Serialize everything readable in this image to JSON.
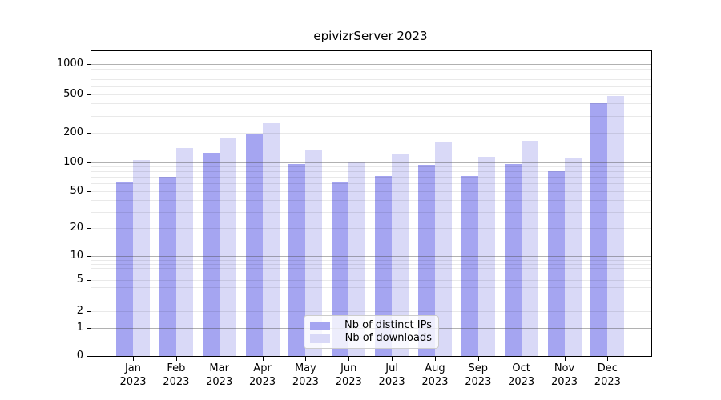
{
  "chart_data": {
    "type": "bar",
    "title": "epivizrServer 2023",
    "categories": [
      "Jan",
      "Feb",
      "Mar",
      "Apr",
      "May",
      "Jun",
      "Jul",
      "Aug",
      "Sep",
      "Oct",
      "Nov",
      "Dec"
    ],
    "category_year": "2023",
    "series": [
      {
        "name": "Nb of distinct IPs",
        "color": "#a5a5f1",
        "values": [
          62,
          70,
          125,
          195,
          95,
          62,
          71,
          94,
          72,
          96,
          81,
          405
        ]
      },
      {
        "name": "Nb of downloads",
        "color": "#d9d9f7",
        "values": [
          105,
          140,
          175,
          250,
          135,
          102,
          121,
          160,
          113,
          165,
          110,
          475
        ]
      }
    ],
    "xlabel": "",
    "ylabel": "",
    "yscale": "log-like with zero baseline",
    "yticks": [
      0,
      1,
      2,
      5,
      10,
      20,
      50,
      100,
      200,
      500,
      1000
    ],
    "major_grid_values": [
      1,
      10,
      100,
      1000
    ],
    "minor_grid_values": [
      2,
      3,
      4,
      5,
      6,
      7,
      8,
      9,
      20,
      30,
      40,
      50,
      60,
      70,
      80,
      90,
      200,
      300,
      400,
      500,
      600,
      700,
      800,
      900
    ],
    "ylim": [
      0,
      1400
    ],
    "grid": "horizontal, drawn over bars",
    "legend_position": "lower center inside plot"
  },
  "colors": {
    "distinct_ips_bar": "#a5a5f1",
    "downloads_bar": "#d9d9f7",
    "plot_frame": "#000000",
    "major_gridline": "#b2b2b2",
    "minor_gridline": "#ebebeb",
    "legend_border": "#cccccc",
    "background": "#ffffff"
  }
}
